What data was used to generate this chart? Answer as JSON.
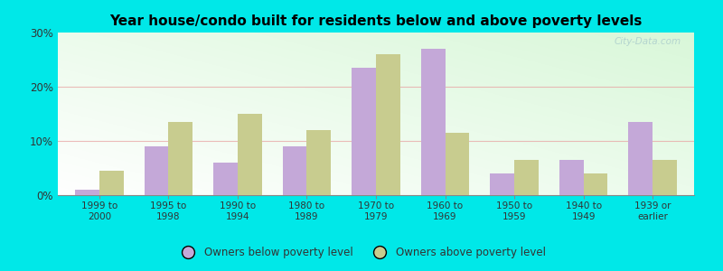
{
  "title": "Year house/condo built for residents below and above poverty levels",
  "categories": [
    "1999 to\n2000",
    "1995 to\n1998",
    "1990 to\n1994",
    "1980 to\n1989",
    "1970 to\n1979",
    "1960 to\n1969",
    "1950 to\n1959",
    "1940 to\n1949",
    "1939 or\nearlier"
  ],
  "below_poverty": [
    1.0,
    9.0,
    6.0,
    9.0,
    23.5,
    27.0,
    4.0,
    6.5,
    13.5
  ],
  "above_poverty": [
    4.5,
    13.5,
    15.0,
    12.0,
    26.0,
    11.5,
    6.5,
    4.0,
    6.5
  ],
  "below_color": "#c4a8d8",
  "above_color": "#c8cc8f",
  "ylim": [
    0,
    30
  ],
  "yticks": [
    0,
    10,
    20,
    30
  ],
  "ytick_labels": [
    "0%",
    "10%",
    "20%",
    "30%"
  ],
  "legend_below": "Owners below poverty level",
  "legend_above": "Owners above poverty level",
  "outer_bg": "#00e8e8",
  "watermark": "City-Data.com"
}
